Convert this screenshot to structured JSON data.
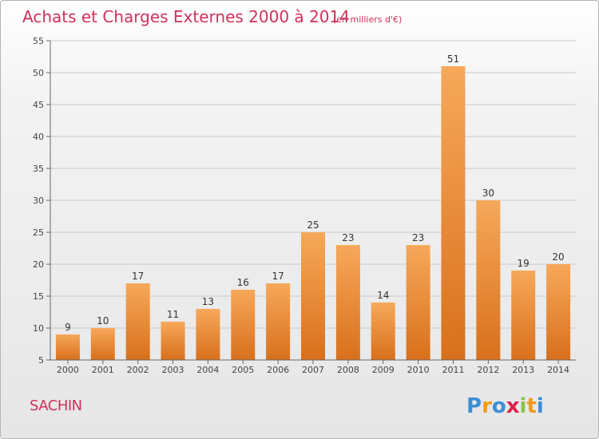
{
  "header": {
    "title": "Achats et Charges Externes 2000 à 2014",
    "unit": "(en milliers d'€)"
  },
  "footer": {
    "commune": "SACHIN",
    "logo_text": "Proxiti",
    "logo_letters": [
      {
        "char": "P",
        "color": "#3a8fd6"
      },
      {
        "char": "r",
        "color": "#f29a1e"
      },
      {
        "char": "o",
        "color": "#3a8fd6"
      },
      {
        "char": "x",
        "color": "#e0204a"
      },
      {
        "char": "i",
        "color": "#8bc34a"
      },
      {
        "char": "t",
        "color": "#f29a1e"
      },
      {
        "char": "i",
        "color": "#3a8fd6"
      }
    ]
  },
  "colors": {
    "bar_top": "#f7a85a",
    "bar_bottom": "#d8701c",
    "grid": "#c8c8c8",
    "axis": "#666666"
  },
  "chart_data": {
    "type": "bar",
    "categories": [
      "2000",
      "2001",
      "2002",
      "2003",
      "2004",
      "2005",
      "2006",
      "2007",
      "2008",
      "2009",
      "2010",
      "2011",
      "2012",
      "2013",
      "2014"
    ],
    "values": [
      9,
      10,
      17,
      11,
      13,
      16,
      17,
      25,
      23,
      14,
      23,
      51,
      30,
      19,
      20
    ],
    "ylim": [
      5,
      55
    ],
    "yticks": [
      5,
      10,
      15,
      20,
      25,
      30,
      35,
      40,
      45,
      50,
      55
    ],
    "grid": true
  }
}
